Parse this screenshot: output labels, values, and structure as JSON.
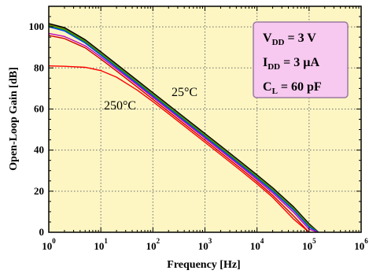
{
  "chart_data": {
    "type": "line",
    "title": "",
    "xlabel": "Frequency [Hz]",
    "ylabel": "Open-Loop Gain [dB]",
    "xscale": "log",
    "xlim": [
      1,
      1000000
    ],
    "ylim": [
      0,
      110
    ],
    "x_ticks": [
      {
        "base": "10",
        "exp": "0"
      },
      {
        "base": "10",
        "exp": "1"
      },
      {
        "base": "10",
        "exp": "2"
      },
      {
        "base": "10",
        "exp": "3"
      },
      {
        "base": "10",
        "exp": "4"
      },
      {
        "base": "10",
        "exp": "5"
      },
      {
        "base": "10",
        "exp": "6"
      }
    ],
    "y_ticks": [
      "0",
      "20",
      "40",
      "60",
      "80",
      "100"
    ],
    "grid": true,
    "legend": "none",
    "background": "#fdf6c3",
    "params_box": {
      "fill": "#f7c8f0",
      "lines": [
        {
          "main": "V",
          "sub": "DD",
          "rest": " = 3 V"
        },
        {
          "main": "I",
          "sub": "DD",
          "rest": " = 3 µA"
        },
        {
          "main": "C",
          "sub": "L",
          "rest": " = 60 pF"
        }
      ]
    },
    "annotations": {
      "low_temp": "25°C",
      "high_temp": "250°C"
    },
    "series": [
      {
        "color": "#000000",
        "dc_gain": 101.5,
        "pole_hz": 2.0,
        "values_note": ""
      },
      {
        "color": "#808000",
        "dc_gain": 101.0,
        "pole_hz": 2.0
      },
      {
        "color": "#00a000",
        "dc_gain": 100.5,
        "pole_hz": 2.0
      },
      {
        "color": "#0040ff",
        "dc_gain": 100.0,
        "pole_hz": 2.0
      },
      {
        "color": "#c000c0",
        "dc_gain": 97.0,
        "pole_hz": 2.6
      },
      {
        "color": "#d00000",
        "dc_gain": 96.0,
        "pole_hz": 2.6
      },
      {
        "color": "#ff0000",
        "dc_gain": 81.0,
        "pole_hz": 12.0
      }
    ],
    "points_x": [
      1,
      2,
      5,
      10,
      20,
      50,
      100,
      200,
      500,
      1000,
      2000,
      5000,
      10000,
      20000,
      50000,
      100000,
      150000,
      200000
    ],
    "curves": [
      {
        "name": "",
        "color": "#000000",
        "y": [
          101.5,
          99.5,
          93.6,
          87.7,
          81.7,
          73.8,
          67.8,
          61.8,
          53.9,
          47.9,
          41.9,
          33.9,
          27.8,
          21.5,
          12.3,
          4.0,
          0.0,
          null
        ]
      },
      {
        "name": "",
        "color": "#808000",
        "y": [
          101.0,
          99.0,
          93.1,
          87.2,
          81.2,
          73.3,
          67.3,
          61.3,
          53.4,
          47.4,
          41.4,
          33.4,
          27.3,
          21.0,
          11.8,
          3.5,
          0.0,
          null
        ]
      },
      {
        "name": "",
        "color": "#00a000",
        "y": [
          100.5,
          98.5,
          92.6,
          86.7,
          80.7,
          72.8,
          66.8,
          60.8,
          52.9,
          46.9,
          40.9,
          32.9,
          26.8,
          20.5,
          11.3,
          3.0,
          0.0,
          null
        ]
      },
      {
        "name": "",
        "color": "#0040ff",
        "y": [
          100.0,
          98.0,
          92.1,
          86.2,
          80.2,
          72.3,
          66.3,
          60.3,
          52.4,
          46.4,
          40.4,
          32.4,
          26.3,
          20.0,
          10.8,
          2.5,
          0.0,
          null
        ]
      },
      {
        "name": "",
        "color": "#c000c0",
        "y": [
          96.8,
          95.3,
          90.8,
          85.3,
          79.5,
          71.7,
          65.7,
          59.7,
          51.8,
          45.8,
          39.8,
          31.8,
          25.6,
          19.2,
          9.8,
          1.5,
          0.0,
          null
        ]
      },
      {
        "name": "",
        "color": "#d00000",
        "y": [
          95.8,
          94.3,
          89.8,
          84.3,
          78.5,
          70.7,
          64.7,
          58.7,
          50.8,
          44.8,
          38.8,
          30.8,
          24.6,
          18.0,
          8.0,
          0.0,
          null,
          null
        ]
      },
      {
        "name": "",
        "color": "#ff0000",
        "y": [
          81.0,
          80.8,
          80.3,
          78.7,
          75.5,
          69.2,
          63.6,
          57.7,
          49.8,
          43.8,
          37.8,
          29.8,
          23.6,
          17.0,
          6.5,
          0.0,
          null,
          null
        ]
      }
    ]
  }
}
